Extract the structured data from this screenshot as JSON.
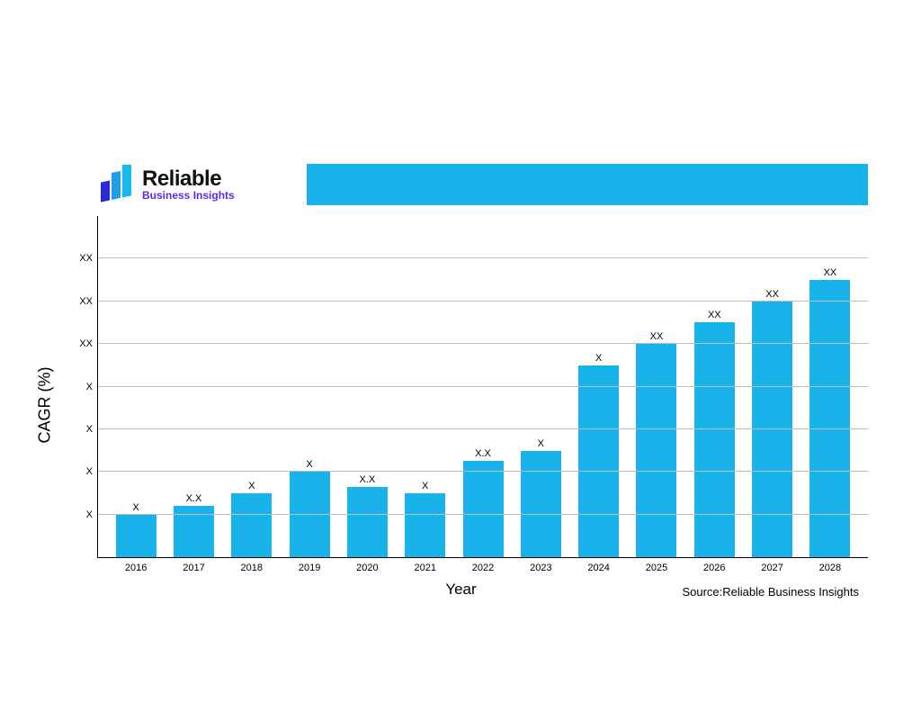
{
  "logo": {
    "line1": "Reliable",
    "line2": "Business Insights",
    "line1_color": "#111111",
    "line2_color": "#5a2de0",
    "bar_colors": [
      "#2a2ad6",
      "#1fa0e6",
      "#16b8f0"
    ]
  },
  "title_banner_color": "#17b3ea",
  "chart": {
    "type": "bar",
    "ylabel": "CAGR (%)",
    "xlabel": "Year",
    "bar_color": "#17b3ea",
    "background_color": "#ffffff",
    "grid_color": "#bdbdbd",
    "axis_color": "#000000",
    "label_fontsize": 17,
    "tick_fontsize": 11,
    "value_fontsize": 11,
    "bar_width_ratio": 0.7,
    "ylim": [
      0,
      8
    ],
    "yticks": [
      {
        "v": 1,
        "label": "X"
      },
      {
        "v": 2,
        "label": "X"
      },
      {
        "v": 3,
        "label": "X"
      },
      {
        "v": 4,
        "label": "X"
      },
      {
        "v": 5,
        "label": "XX"
      },
      {
        "v": 6,
        "label": "XX"
      },
      {
        "v": 7,
        "label": "XX"
      }
    ],
    "data": [
      {
        "year": "2016",
        "value": 1.0,
        "label": "X"
      },
      {
        "year": "2017",
        "value": 1.2,
        "label": "X.X"
      },
      {
        "year": "2018",
        "value": 1.5,
        "label": "X"
      },
      {
        "year": "2019",
        "value": 2.0,
        "label": "X"
      },
      {
        "year": "2020",
        "value": 1.65,
        "label": "X.X"
      },
      {
        "year": "2021",
        "value": 1.5,
        "label": "X"
      },
      {
        "year": "2022",
        "value": 2.25,
        "label": "X.X"
      },
      {
        "year": "2023",
        "value": 2.5,
        "label": "X"
      },
      {
        "year": "2024",
        "value": 4.5,
        "label": "X"
      },
      {
        "year": "2025",
        "value": 5.0,
        "label": "XX"
      },
      {
        "year": "2026",
        "value": 5.5,
        "label": "XX"
      },
      {
        "year": "2027",
        "value": 6.0,
        "label": "XX"
      },
      {
        "year": "2028",
        "value": 6.5,
        "label": "XX"
      }
    ]
  },
  "source": {
    "prefix": "Source:",
    "name": "Reliable Business Insights"
  }
}
